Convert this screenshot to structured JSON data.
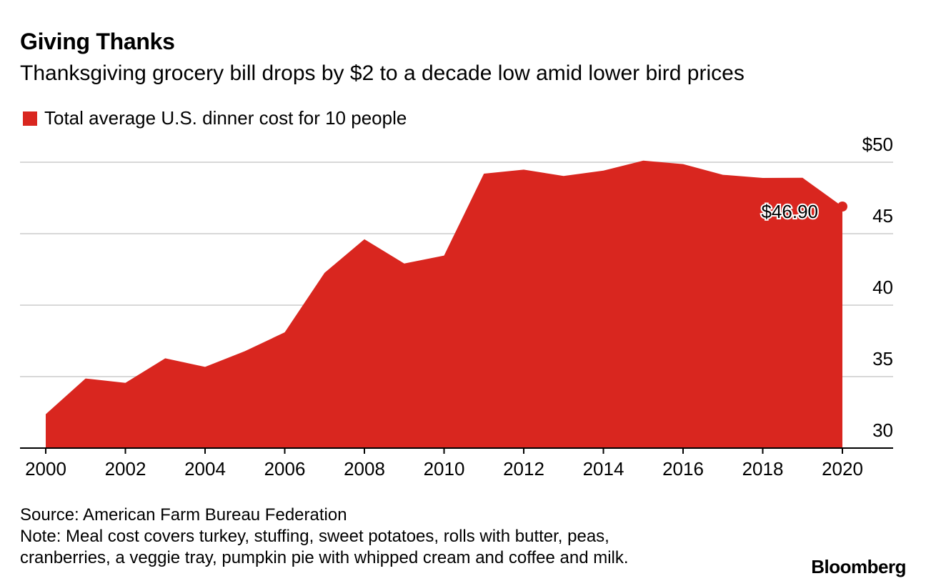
{
  "header": {
    "title": "Giving Thanks",
    "subtitle": "Thanksgiving grocery bill drops by $2 to a decade low amid lower bird prices"
  },
  "legend": {
    "label": "Total average U.S. dinner cost for 10 people",
    "color": "#d9261f"
  },
  "footer": {
    "source": "Source: American Farm Bureau Federation",
    "note_line1": "Note: Meal cost covers turkey, stuffing, sweet potatoes, rolls with butter, peas,",
    "note_line2": "cranberries, a veggie tray, pumpkin pie with whipped cream and coffee and milk.",
    "brand": "Bloomberg"
  },
  "chart_data": {
    "type": "area",
    "title": "Giving Thanks",
    "subtitle": "Thanksgiving grocery bill drops by $2 to a decade low amid lower bird prices",
    "xlabel": "",
    "ylabel": "",
    "x": [
      2000,
      2001,
      2002,
      2003,
      2004,
      2005,
      2006,
      2007,
      2008,
      2009,
      2010,
      2011,
      2012,
      2013,
      2014,
      2015,
      2016,
      2017,
      2018,
      2019,
      2020
    ],
    "series": [
      {
        "name": "Total average U.S. dinner cost for 10 people",
        "color": "#d9261f",
        "values": [
          32.37,
          34.87,
          34.56,
          36.28,
          35.68,
          36.78,
          38.1,
          42.26,
          44.61,
          42.91,
          43.47,
          49.2,
          49.48,
          49.04,
          49.41,
          50.11,
          49.87,
          49.12,
          48.9,
          48.91,
          46.9
        ]
      }
    ],
    "xlim": [
      2000,
      2020
    ],
    "ylim": [
      30,
      50
    ],
    "x_ticks": [
      2000,
      2002,
      2004,
      2006,
      2008,
      2010,
      2012,
      2014,
      2016,
      2018,
      2020
    ],
    "x_tick_labels": [
      "2000",
      "2002",
      "2004",
      "2006",
      "2008",
      "2010",
      "2012",
      "2014",
      "2016",
      "2018",
      "2020"
    ],
    "y_ticks": [
      30,
      35,
      40,
      45,
      50
    ],
    "y_tick_labels": [
      "30",
      "35",
      "40",
      "45",
      "$50"
    ],
    "annotation": {
      "x": 2020,
      "y": 46.9,
      "label": "$46.90"
    },
    "grid": "horizontal",
    "y_axis_side": "right"
  }
}
